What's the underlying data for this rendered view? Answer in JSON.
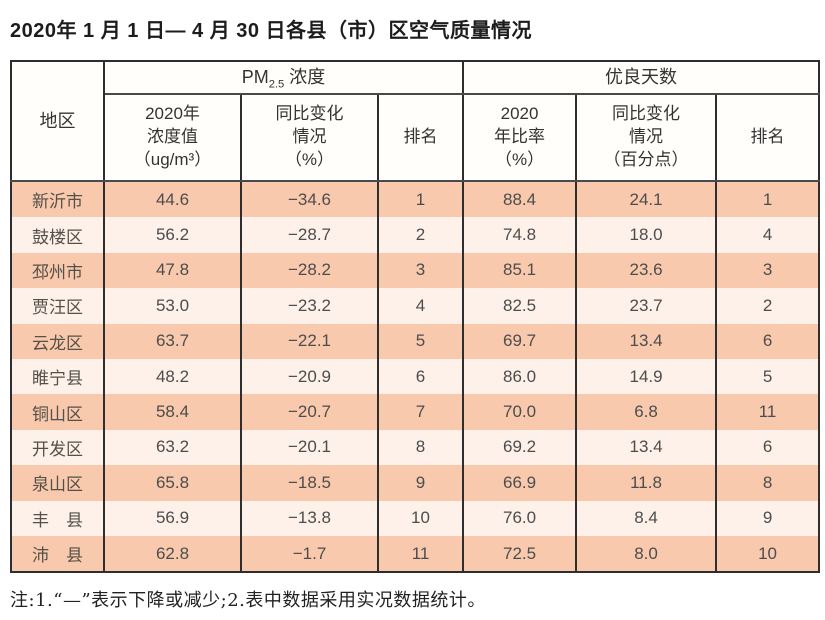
{
  "title": "2020年 1 月 1 日— 4 月 30 日各县（市）区空气质量情况",
  "table": {
    "header": {
      "region": "地区",
      "pm_group": {
        "prefix": "PM",
        "sub": "2.5",
        "suffix": " 浓度"
      },
      "good_group": "优良天数",
      "pm_value": "2020年\n浓度值\n（ug/m³）",
      "pm_change": "同比变化\n情况\n（%）",
      "pm_rank": "排名",
      "good_rate": "2020\n年比率\n（%）",
      "good_change": "同比变化\n情况\n（百分点）",
      "good_rank": "排名"
    },
    "rows": [
      {
        "region": "新沂市",
        "pm_value": "44.6",
        "pm_change": "−34.6",
        "pm_rank": "1",
        "good_rate": "88.4",
        "good_change": "24.1",
        "good_rank": "1"
      },
      {
        "region": "鼓楼区",
        "pm_value": "56.2",
        "pm_change": "−28.7",
        "pm_rank": "2",
        "good_rate": "74.8",
        "good_change": "18.0",
        "good_rank": "4"
      },
      {
        "region": "邳州市",
        "pm_value": "47.8",
        "pm_change": "−28.2",
        "pm_rank": "3",
        "good_rate": "85.1",
        "good_change": "23.6",
        "good_rank": "3"
      },
      {
        "region": "贾汪区",
        "pm_value": "53.0",
        "pm_change": "−23.2",
        "pm_rank": "4",
        "good_rate": "82.5",
        "good_change": "23.7",
        "good_rank": "2"
      },
      {
        "region": "云龙区",
        "pm_value": "63.7",
        "pm_change": "−22.1",
        "pm_rank": "5",
        "good_rate": "69.7",
        "good_change": "13.4",
        "good_rank": "6"
      },
      {
        "region": "睢宁县",
        "pm_value": "48.2",
        "pm_change": "−20.9",
        "pm_rank": "6",
        "good_rate": "86.0",
        "good_change": "14.9",
        "good_rank": "5"
      },
      {
        "region": "铜山区",
        "pm_value": "58.4",
        "pm_change": "−20.7",
        "pm_rank": "7",
        "good_rate": "70.0",
        "good_change": "6.8",
        "good_rank": "11"
      },
      {
        "region": "开发区",
        "pm_value": "63.2",
        "pm_change": "−20.1",
        "pm_rank": "8",
        "good_rate": "69.2",
        "good_change": "13.4",
        "good_rank": "6"
      },
      {
        "region": "泉山区",
        "pm_value": "65.8",
        "pm_change": "−18.5",
        "pm_rank": "9",
        "good_rate": "66.9",
        "good_change": "11.8",
        "good_rank": "8"
      },
      {
        "region": "丰　县",
        "pm_value": "56.9",
        "pm_change": "−13.8",
        "pm_rank": "10",
        "good_rate": "76.0",
        "good_change": "8.4",
        "good_rank": "9"
      },
      {
        "region": "沛　县",
        "pm_value": "62.8",
        "pm_change": "−1.7",
        "pm_rank": "11",
        "good_rate": "72.5",
        "good_change": "8.0",
        "good_rank": "10"
      }
    ]
  },
  "footnote": "注:1.“—”表示下降或减少;2.表中数据采用实况数据统计。",
  "colors": {
    "row_salmon": "#f8c9ad",
    "row_light": "#fdf1e9",
    "border": "#2e2e2e",
    "text": "#4a4a4a"
  }
}
